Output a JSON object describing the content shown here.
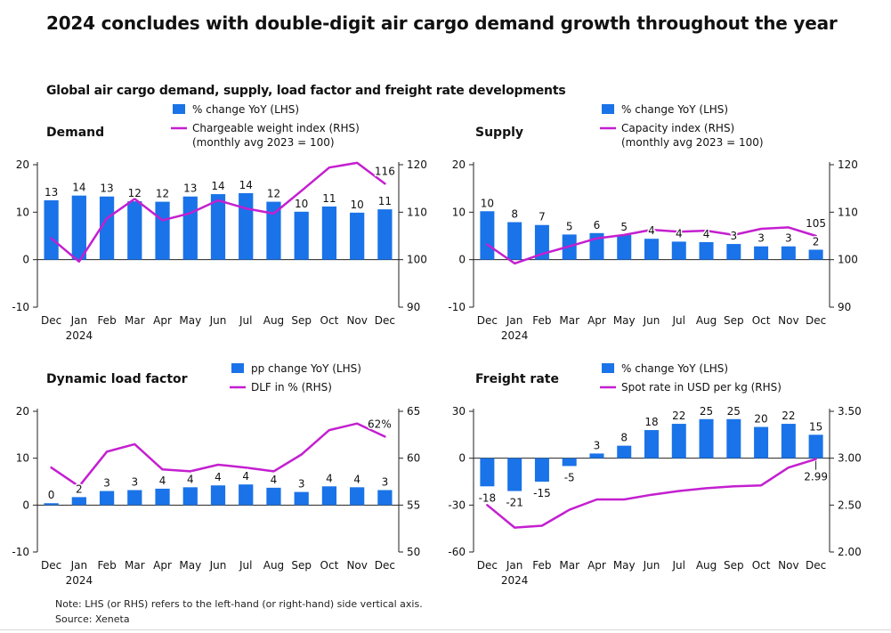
{
  "title": "2024 concludes with double-digit air cargo demand growth throughout the year",
  "subtitle": "Global air cargo demand, supply, load factor and freight rate developments",
  "note": "Note: LHS (or RHS) refers to the left-hand (or right-hand) side vertical axis.",
  "source": "Source: Xeneta",
  "colors": {
    "bar": "#1a73e8",
    "line": "#c41fd0",
    "axis": "#222222"
  },
  "chart_data": [
    {
      "type": "bar",
      "title": "Demand",
      "categories": [
        "Dec",
        "Jan",
        "Feb",
        "Mar",
        "Apr",
        "May",
        "Jun",
        "Jul",
        "Aug",
        "Sep",
        "Oct",
        "Nov",
        "Dec"
      ],
      "category_sublabels": [
        "",
        "2024",
        "",
        "",
        "",
        "",
        "",
        "",
        "",
        "",
        "",
        "",
        ""
      ],
      "series": [
        {
          "name": "% change YoY (LHS)",
          "type": "bar",
          "axis": "left",
          "values": [
            12.5,
            13.5,
            13.3,
            12.3,
            12.2,
            13.3,
            13.8,
            14.0,
            12.2,
            10.1,
            11.2,
            9.9,
            10.6
          ],
          "data_labels": [
            "13",
            "14",
            "13",
            "12",
            "12",
            "13",
            "14",
            "14",
            "12",
            "10",
            "11",
            "10",
            "11"
          ]
        },
        {
          "name": "Chargeable weight index (RHS)",
          "name_line2": "(monthly avg 2023 = 100)",
          "type": "line",
          "axis": "right",
          "values": [
            104.5,
            99.6,
            108.7,
            112.8,
            108.3,
            109.8,
            112.5,
            110.8,
            109.7,
            114.5,
            119.4,
            120.4,
            116.0
          ],
          "end_label": "116"
        }
      ],
      "ylim_left": [
        -10,
        20
      ],
      "yticks_left": [
        -10,
        0,
        10,
        20
      ],
      "ylim_right": [
        90,
        120
      ],
      "yticks_right": [
        90,
        100,
        110,
        120
      ],
      "legend": "top-center"
    },
    {
      "type": "bar",
      "title": "Supply",
      "categories": [
        "Dec",
        "Jan",
        "Feb",
        "Mar",
        "Apr",
        "May",
        "Jun",
        "Jul",
        "Aug",
        "Sep",
        "Oct",
        "Nov",
        "Dec"
      ],
      "category_sublabels": [
        "",
        "2024",
        "",
        "",
        "",
        "",
        "",
        "",
        "",
        "",
        "",
        "",
        ""
      ],
      "series": [
        {
          "name": "% change YoY (LHS)",
          "type": "bar",
          "axis": "left",
          "values": [
            10.2,
            7.9,
            7.3,
            5.3,
            5.6,
            5.2,
            4.4,
            3.8,
            3.7,
            3.3,
            2.8,
            2.8,
            2.1
          ],
          "data_labels": [
            "10",
            "8",
            "7",
            "5",
            "6",
            "5",
            "4",
            "4",
            "4",
            "3",
            "3",
            "3",
            "2"
          ]
        },
        {
          "name": "Capacity index (RHS)",
          "name_line2": "(monthly avg 2023 = 100)",
          "type": "line",
          "axis": "right",
          "values": [
            103.2,
            99.2,
            101.2,
            102.8,
            104.5,
            105.2,
            106.3,
            105.9,
            106.1,
            105.2,
            106.5,
            106.8,
            105.0
          ],
          "end_label": "105"
        }
      ],
      "ylim_left": [
        -10,
        20
      ],
      "yticks_left": [
        -10,
        0,
        10,
        20
      ],
      "ylim_right": [
        90,
        120
      ],
      "yticks_right": [
        90,
        100,
        110,
        120
      ],
      "legend": "top-center"
    },
    {
      "type": "bar",
      "title": "Dynamic load factor",
      "categories": [
        "Dec",
        "Jan",
        "Feb",
        "Mar",
        "Apr",
        "May",
        "Jun",
        "Jul",
        "Aug",
        "Sep",
        "Oct",
        "Nov",
        "Dec"
      ],
      "category_sublabels": [
        "",
        "2024",
        "",
        "",
        "",
        "",
        "",
        "",
        "",
        "",
        "",
        "",
        ""
      ],
      "series": [
        {
          "name": "pp change YoY (LHS)",
          "type": "bar",
          "axis": "left",
          "values": [
            0.4,
            1.7,
            3.0,
            3.2,
            3.5,
            3.8,
            4.2,
            4.4,
            3.7,
            2.8,
            4.0,
            3.8,
            3.2
          ],
          "data_labels": [
            "0",
            "2",
            "3",
            "3",
            "4",
            "4",
            "4",
            "4",
            "4",
            "3",
            "4",
            "4",
            "3"
          ]
        },
        {
          "name": "DLF in % (RHS)",
          "type": "line",
          "axis": "right",
          "values": [
            59.0,
            57.0,
            60.7,
            61.5,
            58.8,
            58.6,
            59.3,
            59.0,
            58.6,
            60.4,
            63.0,
            63.7,
            62.3
          ],
          "end_label": "62%"
        }
      ],
      "ylim_left": [
        -10,
        20
      ],
      "yticks_left": [
        -10,
        0,
        10,
        20
      ],
      "ylim_right": [
        50,
        65
      ],
      "yticks_right": [
        50,
        55,
        60,
        65
      ],
      "legend": "top-center"
    },
    {
      "type": "bar",
      "title": "Freight rate",
      "categories": [
        "Dec",
        "Jan",
        "Feb",
        "Mar",
        "Apr",
        "May",
        "Jun",
        "Jul",
        "Aug",
        "Sep",
        "Oct",
        "Nov",
        "Dec"
      ],
      "category_sublabels": [
        "",
        "2024",
        "",
        "",
        "",
        "",
        "",
        "",
        "",
        "",
        "",
        "",
        ""
      ],
      "series": [
        {
          "name": "% change YoY (LHS)",
          "type": "bar",
          "axis": "left",
          "values": [
            -18,
            -21,
            -15,
            -5,
            3,
            8,
            18,
            22,
            25,
            25,
            20,
            22,
            15
          ],
          "data_labels": [
            "-18",
            "-21",
            "-15",
            "-5",
            "3",
            "8",
            "18",
            "22",
            "25",
            "25",
            "20",
            "22",
            "15"
          ]
        },
        {
          "name": "Spot rate in USD per kg (RHS)",
          "type": "line",
          "axis": "right",
          "values": [
            2.5,
            2.26,
            2.28,
            2.45,
            2.56,
            2.56,
            2.61,
            2.65,
            2.68,
            2.7,
            2.71,
            2.9,
            2.99
          ],
          "end_label": "2.99"
        }
      ],
      "ylim_left": [
        -60,
        30
      ],
      "yticks_left": [
        -60,
        -30,
        0,
        30
      ],
      "ylim_right": [
        2.0,
        3.5
      ],
      "yticks_right": [
        "2.00",
        "2.50",
        "3.00",
        "3.50"
      ],
      "legend": "top-center"
    }
  ]
}
